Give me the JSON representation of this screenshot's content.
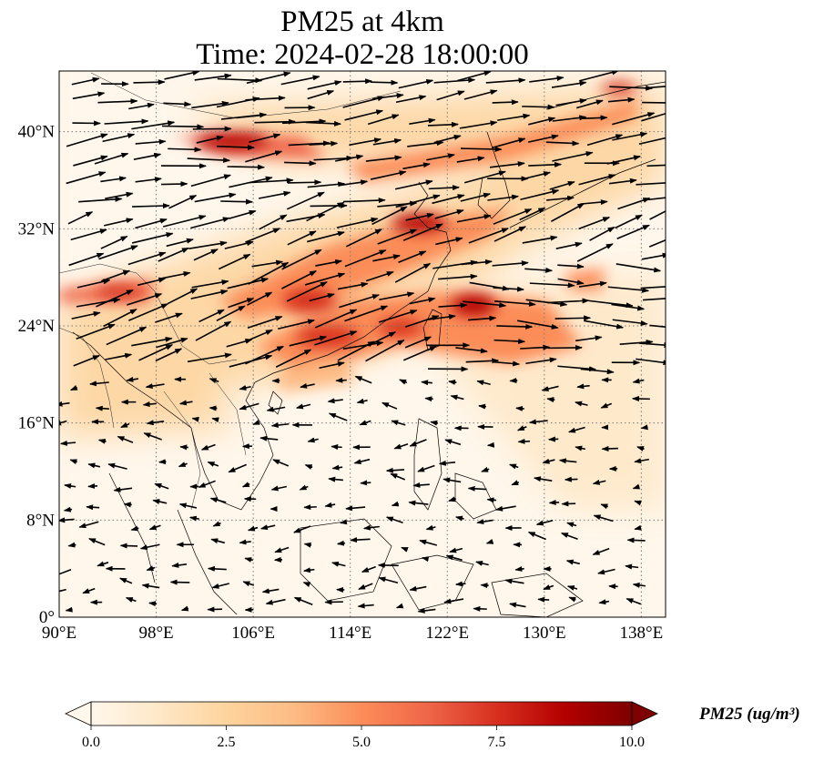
{
  "title": {
    "line1": "PM25 at 4km",
    "line2": "Time: 2024-02-28 18:00:00"
  },
  "map": {
    "projection": "PlateCarree",
    "lon_range": [
      90,
      140
    ],
    "lat_range": [
      0,
      45
    ],
    "lon_ticks": [
      90,
      98,
      106,
      114,
      122,
      130,
      138
    ],
    "lat_ticks": [
      0,
      8,
      16,
      24,
      32,
      40
    ],
    "lon_tick_labels": [
      "90°E",
      "98°E",
      "106°E",
      "114°E",
      "122°E",
      "130°E",
      "138°E"
    ],
    "lat_tick_labels": [
      "0°",
      "8°N",
      "16°N",
      "24°N",
      "32°N",
      "40°N"
    ],
    "gridlines": true,
    "gridline_style": "dotted",
    "field": "PM25",
    "vectors": "wind arrows"
  },
  "colorbar": {
    "label": "PM25 (ug/m³)",
    "min": 0.0,
    "max": 10.0,
    "ticks": [
      "0.0",
      "2.5",
      "5.0",
      "7.5",
      "10.0"
    ],
    "colormap": "OrRd",
    "extend": "both",
    "colors": [
      "#fff7ec",
      "#fee8c8",
      "#fdd49e",
      "#fdbb84",
      "#fc8d59",
      "#ef6548",
      "#d7301f",
      "#b30000",
      "#7f0000"
    ]
  }
}
